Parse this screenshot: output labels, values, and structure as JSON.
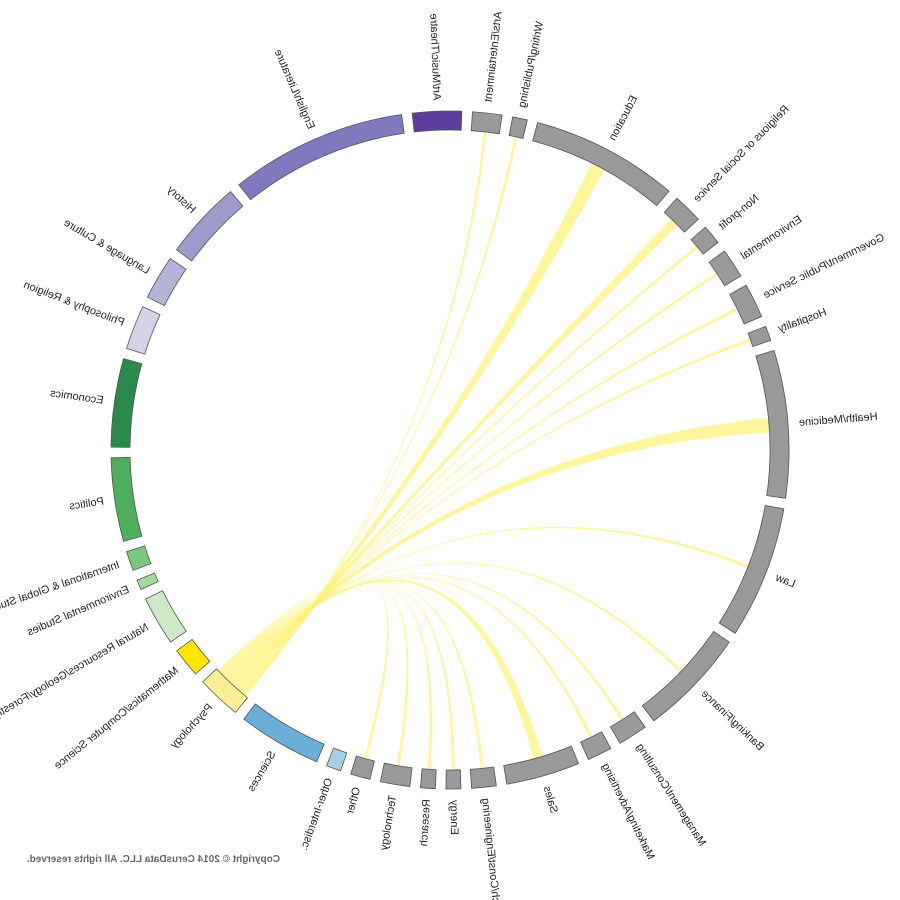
{
  "chart_data": {
    "type": "chord",
    "mirrored": true,
    "title": "",
    "target": "Psychology",
    "ribbon_color": "#FFF176",
    "segments": [
      {
        "name": "Art/Music/Theatre",
        "color": "#5C3D99",
        "share": 1.0,
        "flow": 0
      },
      {
        "name": "English/Literature",
        "color": "#8079BD",
        "share": 3.6,
        "flow": 0
      },
      {
        "name": "History",
        "color": "#9E9ACB",
        "share": 1.6,
        "flow": 0
      },
      {
        "name": "Language & Culture",
        "color": "#B5B3D8",
        "share": 0.9,
        "flow": 0
      },
      {
        "name": "Philosophy & Religion",
        "color": "#D3D2E6",
        "share": 0.9,
        "flow": 0
      },
      {
        "name": "Economics",
        "color": "#2A8A4A",
        "share": 1.8,
        "flow": 0
      },
      {
        "name": "Politics",
        "color": "#4DAF5C",
        "share": 1.7,
        "flow": 0
      },
      {
        "name": "International & Global Studies",
        "color": "#7CC87E",
        "share": 0.4,
        "flow": 0
      },
      {
        "name": "Environmental Studies",
        "color": "#A6D8A0",
        "share": 0.2,
        "flow": 0
      },
      {
        "name": "Natural Resources/Geology/Forestry",
        "color": "#CDEAC6",
        "share": 1.0,
        "flow": 0
      },
      {
        "name": "Mathematics/Computer Science",
        "color": "#FFE600",
        "share": 0.6,
        "flow": 0
      },
      {
        "name": "Psychology",
        "color": "#FCEE94",
        "share": 0.9,
        "flow": 0
      },
      {
        "name": "Sciences",
        "color": "#6BAED6",
        "share": 1.7,
        "flow": 0
      },
      {
        "name": "Other-Interdisc.",
        "color": "#A8CDE6",
        "share": 0.3,
        "flow": 0
      },
      {
        "name": "Other",
        "color": "#999999",
        "share": 0.4,
        "flow": 1
      },
      {
        "name": "Technology",
        "color": "#999999",
        "share": 0.6,
        "flow": 1
      },
      {
        "name": "Research",
        "color": "#999999",
        "share": 0.3,
        "flow": 1
      },
      {
        "name": "Energy",
        "color": "#999999",
        "share": 0.3,
        "flow": 1
      },
      {
        "name": "Arch/Const/Engineering",
        "color": "#999999",
        "share": 0.5,
        "flow": 1
      },
      {
        "name": "Sales",
        "color": "#999999",
        "share": 1.5,
        "flow": 3
      },
      {
        "name": "Marketing/Advertising",
        "color": "#999999",
        "share": 0.5,
        "flow": 1
      },
      {
        "name": "Management/Consulting",
        "color": "#999999",
        "share": 0.6,
        "flow": 1
      },
      {
        "name": "Banking/Finance",
        "color": "#999999",
        "share": 2.2,
        "flow": 1
      },
      {
        "name": "Law",
        "color": "#999999",
        "share": 2.7,
        "flow": 1
      },
      {
        "name": "Health/Medicine",
        "color": "#999999",
        "share": 3.0,
        "flow": 5
      },
      {
        "name": "Hospitality",
        "color": "#999999",
        "share": 0.3,
        "flow": 1
      },
      {
        "name": "Government/Public Service",
        "color": "#999999",
        "share": 0.7,
        "flow": 1
      },
      {
        "name": "Environmental",
        "color": "#999999",
        "share": 0.6,
        "flow": 1
      },
      {
        "name": "Non-profit",
        "color": "#999999",
        "share": 0.4,
        "flow": 1
      },
      {
        "name": "Religious or Social Service",
        "color": "#999999",
        "share": 0.6,
        "flow": 3
      },
      {
        "name": "Education",
        "color": "#999999",
        "share": 3.0,
        "flow": 5
      },
      {
        "name": "Writing/Publishing",
        "color": "#999999",
        "share": 0.3,
        "flow": 1
      },
      {
        "name": "Arts/Entertainment",
        "color": "#999999",
        "share": 0.6,
        "flow": 1
      }
    ]
  },
  "footer": {
    "copyright": "Copyright © 2014 CerusData LLC.  All rights reserved."
  }
}
